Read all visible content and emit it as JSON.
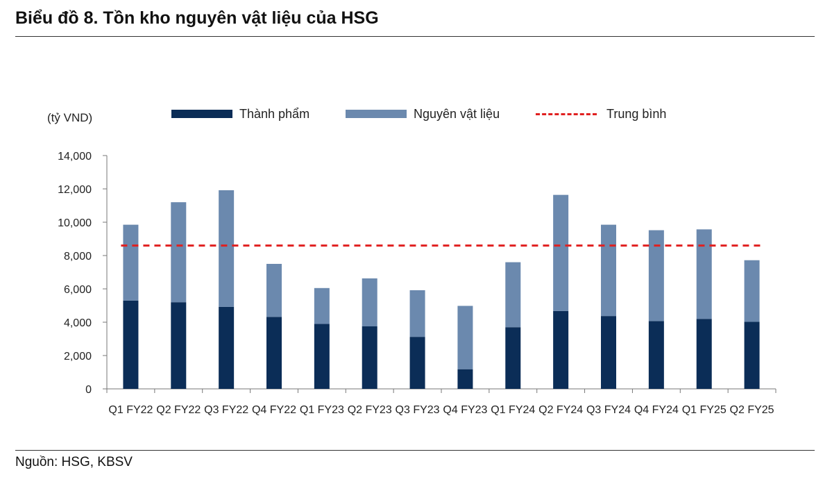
{
  "header": {
    "title": "Biểu đồ 8. Tồn kho nguyên vật liệu của HSG"
  },
  "footer": {
    "source": "Nguồn: HSG, KBSV"
  },
  "chart_data": {
    "type": "bar",
    "stacked": true,
    "unit_label": "(tỷ VND)",
    "categories": [
      "Q1 FY22",
      "Q2 FY22",
      "Q3 FY22",
      "Q4 FY22",
      "Q1 FY23",
      "Q2 FY23",
      "Q3 FY23",
      "Q4 FY23",
      "Q1 FY24",
      "Q2 FY24",
      "Q3 FY24",
      "Q4 FY24",
      "Q1 FY25",
      "Q2 FY25"
    ],
    "series": [
      {
        "name": "Thành phẩm",
        "color": "#0b2d57",
        "values": [
          5300,
          5200,
          4920,
          4320,
          3900,
          3750,
          3120,
          1180,
          3700,
          4670,
          4370,
          4070,
          4200,
          4020
        ]
      },
      {
        "name": "Nguyên vật liệu",
        "color": "#6b89ae",
        "values": [
          4550,
          6000,
          7000,
          3180,
          2150,
          2880,
          2800,
          3800,
          3900,
          6970,
          5480,
          5450,
          5370,
          3700
        ]
      }
    ],
    "reference_line": {
      "name": "Trung bình",
      "value": 8600,
      "color": "#e02020",
      "style": "dashed"
    },
    "ylim": [
      0,
      14000
    ],
    "yticks": [
      0,
      2000,
      4000,
      6000,
      8000,
      10000,
      12000,
      14000
    ],
    "ytick_labels": [
      "0",
      "2,000",
      "4,000",
      "6,000",
      "8,000",
      "10,000",
      "12,000",
      "14,000"
    ],
    "legend_position": "top",
    "grid": false
  }
}
